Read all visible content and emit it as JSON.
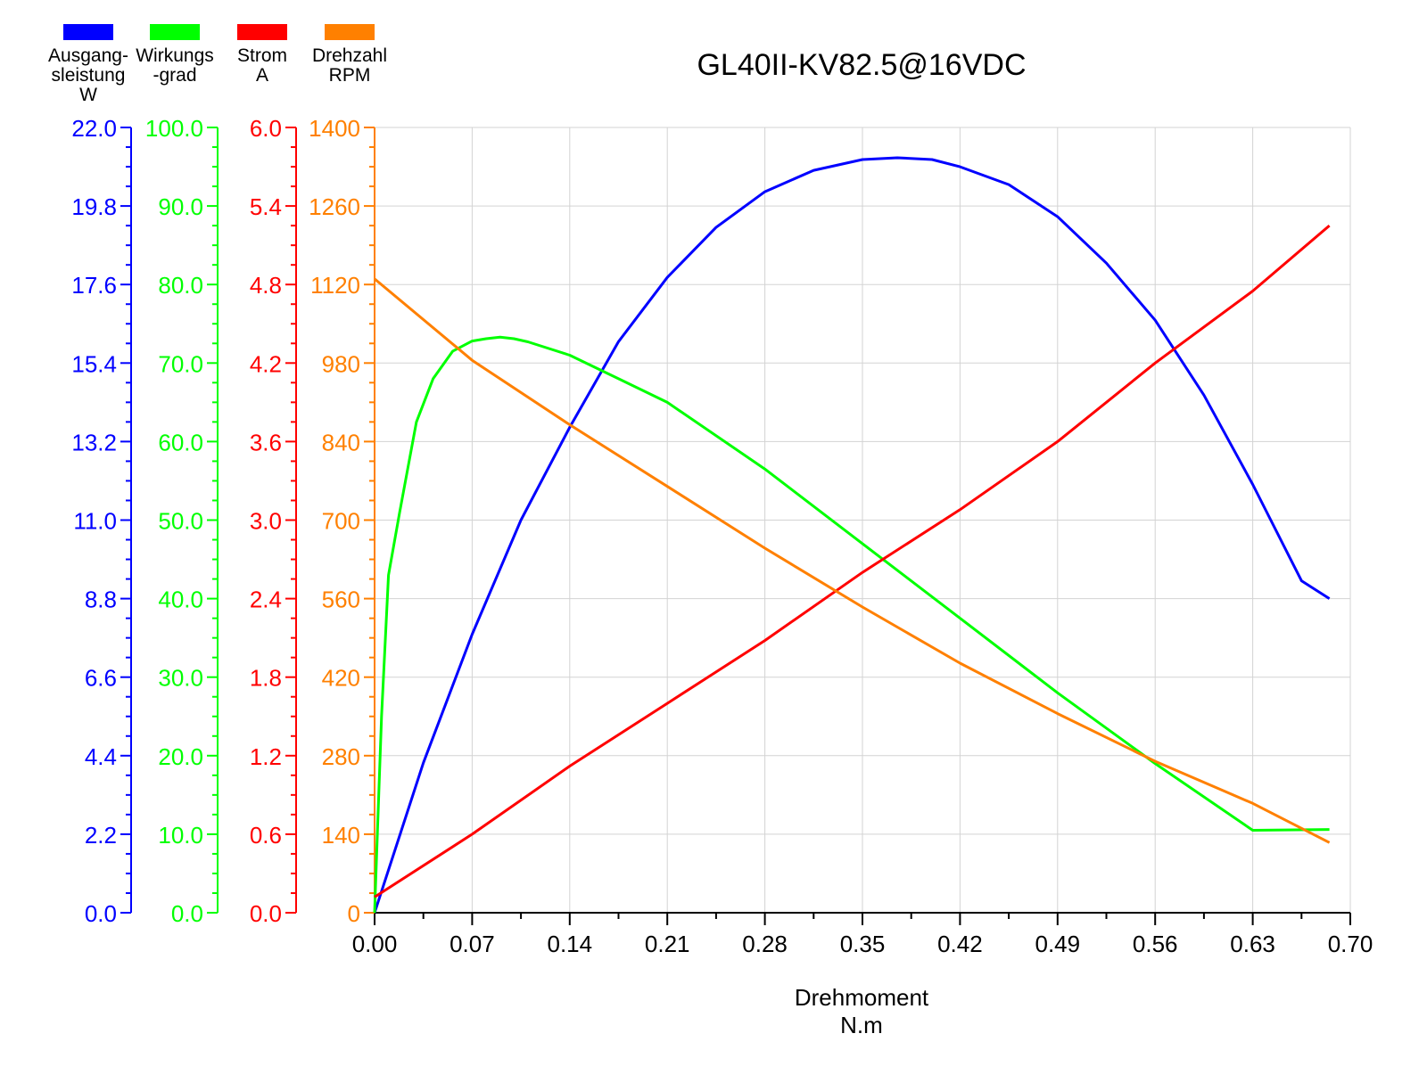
{
  "chart_data": {
    "type": "line",
    "title": "GL40II-KV82.5@16VDC",
    "xlabel": "Drehmoment\nN.m",
    "x_axis": {
      "min": 0,
      "max": 0.7,
      "ticks": [
        "0.00",
        "0.07",
        "0.14",
        "0.21",
        "0.28",
        "0.35",
        "0.42",
        "0.49",
        "0.56",
        "0.63",
        "0.70"
      ]
    },
    "grid": true,
    "legend_position": "top-left",
    "series": [
      {
        "name": "Ausgang-\nsleistung\nW",
        "key": "power",
        "color": "#0000ff",
        "axis": {
          "min": 0,
          "max": 22,
          "ticks": [
            "0.0",
            "2.2",
            "4.4",
            "6.6",
            "8.8",
            "11.0",
            "13.2",
            "15.4",
            "17.6",
            "19.8",
            "22.0"
          ]
        },
        "x": [
          0,
          0.035,
          0.07,
          0.105,
          0.14,
          0.175,
          0.21,
          0.245,
          0.28,
          0.315,
          0.35,
          0.375,
          0.4,
          0.42,
          0.455,
          0.49,
          0.525,
          0.56,
          0.595,
          0.63,
          0.665,
          0.685
        ],
        "values": [
          0,
          4.2,
          7.8,
          11.0,
          13.6,
          16.0,
          17.8,
          19.2,
          20.2,
          20.8,
          21.1,
          21.15,
          21.1,
          20.9,
          20.4,
          19.5,
          18.2,
          16.6,
          14.5,
          12.0,
          9.3,
          8.8
        ]
      },
      {
        "name": "Wirkungs\n-grad",
        "key": "efficiency",
        "color": "#00ff00",
        "axis": {
          "min": 0,
          "max": 100,
          "ticks": [
            "0.0",
            "10.0",
            "20.0",
            "30.0",
            "40.0",
            "50.0",
            "60.0",
            "70.0",
            "80.0",
            "90.0",
            "100.0"
          ]
        },
        "x": [
          0,
          0.002,
          0.005,
          0.01,
          0.018,
          0.03,
          0.042,
          0.056,
          0.07,
          0.08,
          0.09,
          0.1,
          0.11,
          0.14,
          0.175,
          0.21,
          0.28,
          0.35,
          0.42,
          0.49,
          0.56,
          0.63,
          0.685
        ],
        "values": [
          0,
          10,
          25,
          43,
          51,
          62.5,
          68,
          71.5,
          72.8,
          73.1,
          73.3,
          73.1,
          72.7,
          71,
          68,
          65,
          56.5,
          47,
          37.5,
          28,
          19,
          10.5,
          10.6
        ]
      },
      {
        "name": "Strom\nA",
        "key": "current",
        "color": "#ff0000",
        "axis": {
          "min": 0,
          "max": 6,
          "ticks": [
            "0.0",
            "0.6",
            "1.2",
            "1.8",
            "2.4",
            "3.0",
            "3.6",
            "4.2",
            "4.8",
            "5.4",
            "6.0"
          ]
        },
        "x": [
          0,
          0.07,
          0.14,
          0.21,
          0.28,
          0.35,
          0.42,
          0.49,
          0.56,
          0.63,
          0.685
        ],
        "values": [
          0.12,
          0.6,
          1.12,
          1.6,
          2.08,
          2.6,
          3.08,
          3.6,
          4.2,
          4.75,
          5.25
        ]
      },
      {
        "name": "Drehzahl\nRPM",
        "key": "speed",
        "color": "#ff8000",
        "axis": {
          "min": 0,
          "max": 1400,
          "ticks": [
            "0",
            "140",
            "280",
            "420",
            "560",
            "700",
            "840",
            "980",
            "1120",
            "1260",
            "1400"
          ]
        },
        "x": [
          0,
          0.07,
          0.14,
          0.21,
          0.28,
          0.35,
          0.42,
          0.49,
          0.56,
          0.63,
          0.685
        ],
        "values": [
          1130,
          985,
          870,
          760,
          650,
          545,
          445,
          355,
          270,
          195,
          125
        ]
      }
    ]
  }
}
